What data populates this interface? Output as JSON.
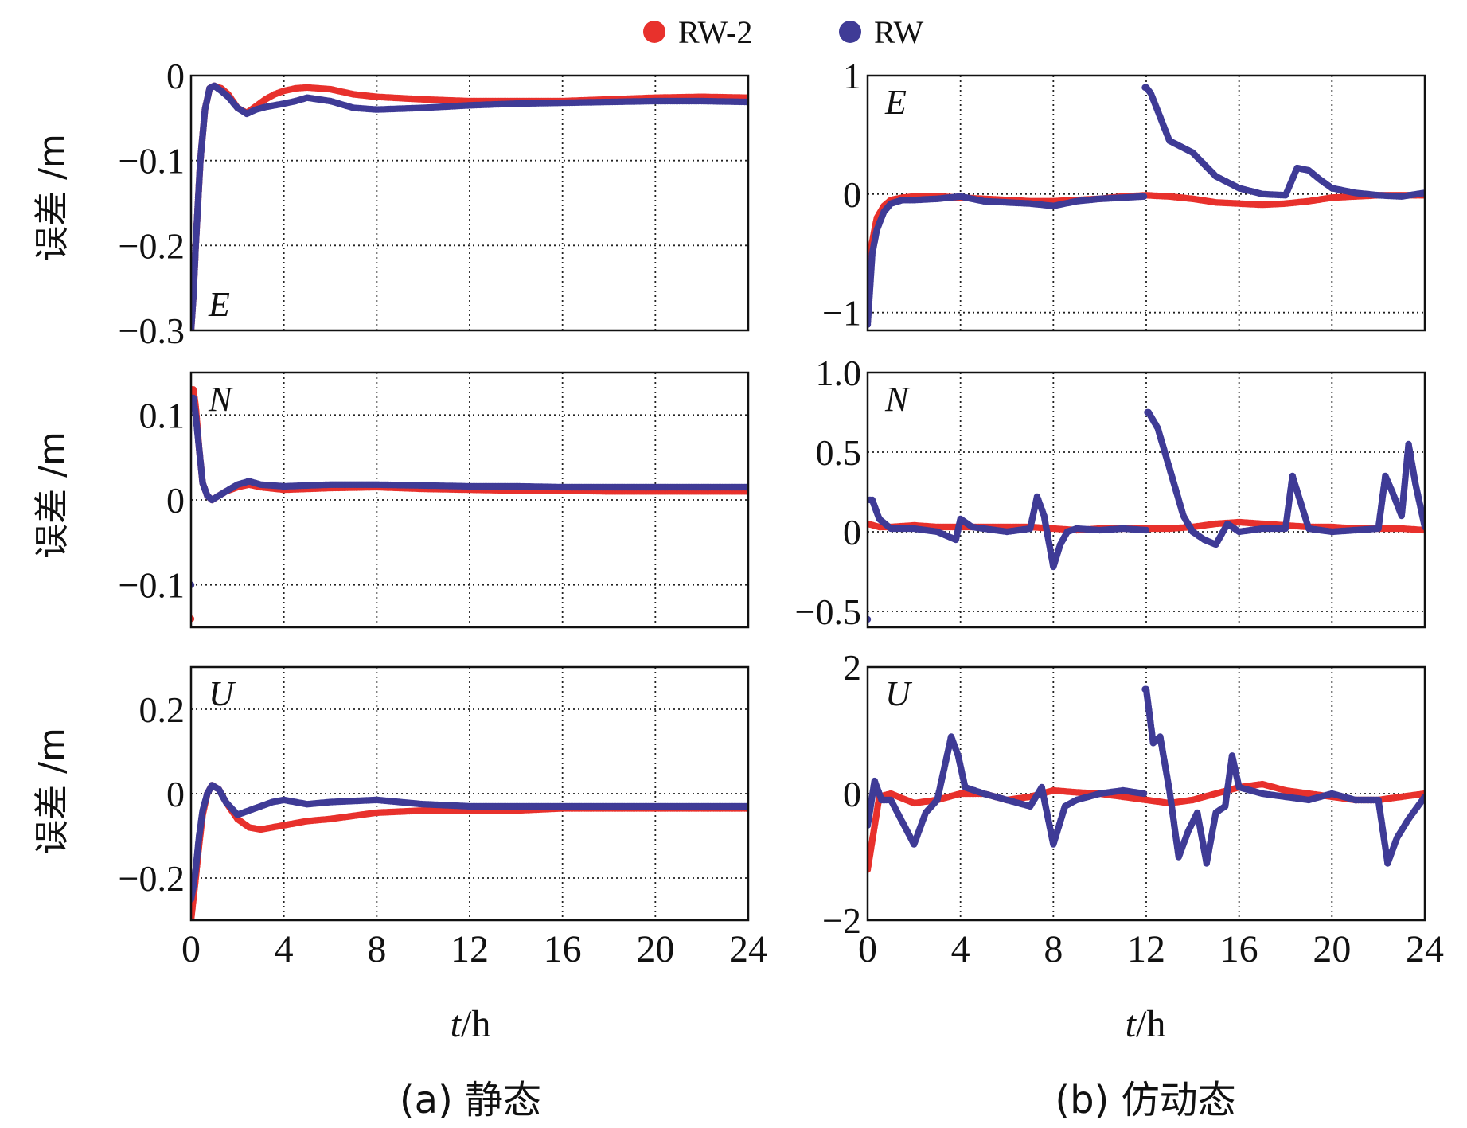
{
  "legend": {
    "position": "top-center",
    "items": [
      {
        "label": "RW-2",
        "color": "#e8312c"
      },
      {
        "label": "RW",
        "color": "#3f3b96"
      }
    ]
  },
  "captions": {
    "left": "(a) 静态",
    "right": "(b) 仿动态"
  },
  "axis_labels": {
    "ylabel": "误差 /m",
    "xlabel_italic": "t",
    "xlabel_unit": "/h"
  },
  "chart_data": [
    {
      "type": "scatter",
      "panel": "a",
      "component": "E",
      "xlim": [
        0,
        24
      ],
      "ylim": [
        -0.3,
        0
      ],
      "xticks": [
        0,
        4,
        8,
        12,
        16,
        20,
        24
      ],
      "yticks": [
        {
          "v": 0,
          "label": "0"
        },
        {
          "v": -0.1,
          "label": "−0.1"
        },
        {
          "v": -0.2,
          "label": "−0.2"
        },
        {
          "v": -0.3,
          "label": "−0.3"
        }
      ],
      "show_xticklabels": false,
      "grid": true,
      "series": [
        {
          "name": "RW-2",
          "color": "#e8312c",
          "x": [
            0,
            0.1,
            0.2,
            0.3,
            0.4,
            0.5,
            0.6,
            0.8,
            1.0,
            1.3,
            1.6,
            2.0,
            2.4,
            2.8,
            3.2,
            3.6,
            4.0,
            4.5,
            5,
            6,
            7,
            8,
            10,
            12,
            14,
            16,
            18,
            20,
            22,
            24
          ],
          "y": [
            -0.3,
            -0.26,
            -0.2,
            -0.15,
            -0.1,
            -0.07,
            -0.04,
            -0.015,
            -0.012,
            -0.015,
            -0.022,
            -0.038,
            -0.044,
            -0.036,
            -0.028,
            -0.022,
            -0.018,
            -0.015,
            -0.014,
            -0.016,
            -0.022,
            -0.025,
            -0.028,
            -0.03,
            -0.03,
            -0.03,
            -0.028,
            -0.026,
            -0.025,
            -0.026
          ]
        },
        {
          "name": "RW",
          "color": "#3f3b96",
          "x": [
            0,
            0.1,
            0.2,
            0.3,
            0.4,
            0.5,
            0.6,
            0.8,
            1.0,
            1.3,
            1.6,
            2.0,
            2.4,
            2.8,
            3.2,
            3.6,
            4.0,
            4.5,
            5,
            6,
            7,
            8,
            10,
            12,
            14,
            16,
            18,
            20,
            22,
            24
          ],
          "y": [
            -0.3,
            -0.26,
            -0.2,
            -0.15,
            -0.1,
            -0.07,
            -0.04,
            -0.015,
            -0.012,
            -0.018,
            -0.025,
            -0.038,
            -0.045,
            -0.04,
            -0.037,
            -0.035,
            -0.033,
            -0.03,
            -0.026,
            -0.03,
            -0.038,
            -0.04,
            -0.038,
            -0.035,
            -0.033,
            -0.032,
            -0.031,
            -0.03,
            -0.03,
            -0.031
          ]
        }
      ]
    },
    {
      "type": "scatter",
      "panel": "b",
      "component": "E",
      "xlim": [
        0,
        24
      ],
      "ylim": [
        -1.15,
        1.0
      ],
      "xticks": [
        0,
        4,
        8,
        12,
        16,
        20,
        24
      ],
      "yticks": [
        {
          "v": 1,
          "label": "1"
        },
        {
          "v": 0,
          "label": "0"
        },
        {
          "v": -1,
          "label": "−1"
        }
      ],
      "show_xticklabels": false,
      "grid": true,
      "series": [
        {
          "name": "RW-2",
          "color": "#e8312c",
          "x": [
            0,
            0.2,
            0.4,
            0.7,
            1.0,
            1.5,
            2,
            3,
            4,
            5,
            6,
            7,
            8,
            9,
            10,
            11,
            12,
            13,
            14,
            15,
            16,
            17,
            18,
            19,
            20,
            21,
            22,
            23,
            24
          ],
          "y": [
            -0.6,
            -0.4,
            -0.2,
            -0.1,
            -0.05,
            -0.03,
            -0.02,
            -0.02,
            -0.03,
            -0.04,
            -0.05,
            -0.06,
            -0.06,
            -0.05,
            -0.04,
            -0.02,
            -0.01,
            -0.02,
            -0.04,
            -0.07,
            -0.08,
            -0.09,
            -0.08,
            -0.06,
            -0.03,
            -0.02,
            -0.01,
            -0.01,
            -0.01
          ]
        },
        {
          "name": "RW",
          "color": "#3f3b96",
          "x": [
            0,
            0.2,
            0.4,
            0.7,
            1.0,
            1.5,
            2,
            3,
            4,
            5,
            6,
            7,
            8,
            9,
            10,
            11,
            11.9,
            12.0,
            12.2,
            12.5,
            13,
            13.5,
            14,
            14.5,
            15,
            15.5,
            16,
            17,
            18,
            18.5,
            19,
            19.5,
            20,
            21,
            22,
            23,
            24
          ],
          "y": [
            -1.1,
            -0.5,
            -0.3,
            -0.15,
            -0.08,
            -0.05,
            -0.05,
            -0.04,
            -0.02,
            -0.06,
            -0.07,
            -0.08,
            -0.1,
            -0.06,
            -0.04,
            -0.03,
            -0.02,
            0.9,
            0.85,
            0.7,
            0.45,
            0.4,
            0.35,
            0.25,
            0.15,
            0.1,
            0.05,
            0.0,
            -0.01,
            0.22,
            0.2,
            0.12,
            0.05,
            0.01,
            -0.01,
            -0.02,
            0.01
          ]
        }
      ]
    },
    {
      "type": "scatter",
      "panel": "a",
      "component": "N",
      "xlim": [
        0,
        24
      ],
      "ylim": [
        -0.15,
        0.15
      ],
      "xticks": [
        0,
        4,
        8,
        12,
        16,
        20,
        24
      ],
      "yticks": [
        {
          "v": 0.1,
          "label": "0.1"
        },
        {
          "v": 0,
          "label": "0"
        },
        {
          "v": -0.1,
          "label": "−0.1"
        }
      ],
      "show_xticklabels": false,
      "grid": true,
      "series": [
        {
          "name": "RW-2",
          "color": "#e8312c",
          "x": [
            0,
            0.1,
            0.2,
            0.35,
            0.5,
            0.7,
            0.9,
            1.2,
            1.5,
            2,
            2.5,
            3,
            4,
            5,
            6,
            8,
            10,
            12,
            14,
            16,
            18,
            20,
            22,
            24
          ],
          "y": [
            -0.14,
            0.13,
            0.11,
            0.06,
            0.02,
            0.005,
            0.0,
            0.005,
            0.01,
            0.015,
            0.018,
            0.015,
            0.012,
            0.013,
            0.014,
            0.015,
            0.013,
            0.012,
            0.011,
            0.011,
            0.01,
            0.01,
            0.01,
            0.01
          ]
        },
        {
          "name": "RW",
          "color": "#3f3b96",
          "x": [
            0,
            0.1,
            0.2,
            0.35,
            0.5,
            0.7,
            0.9,
            1.2,
            1.5,
            2,
            2.5,
            3,
            4,
            5,
            6,
            8,
            10,
            12,
            14,
            16,
            18,
            20,
            22,
            24
          ],
          "y": [
            -0.1,
            0.12,
            0.1,
            0.06,
            0.02,
            0.005,
            0.0,
            0.005,
            0.01,
            0.018,
            0.022,
            0.018,
            0.016,
            0.017,
            0.018,
            0.018,
            0.017,
            0.016,
            0.016,
            0.015,
            0.015,
            0.015,
            0.015,
            0.015
          ]
        }
      ]
    },
    {
      "type": "scatter",
      "panel": "b",
      "component": "N",
      "xlim": [
        0,
        24
      ],
      "ylim": [
        -0.6,
        1.0
      ],
      "xticks": [
        0,
        4,
        8,
        12,
        16,
        20,
        24
      ],
      "yticks": [
        {
          "v": 1.0,
          "label": "1.0"
        },
        {
          "v": 0.5,
          "label": "0.5"
        },
        {
          "v": 0,
          "label": "0"
        },
        {
          "v": -0.5,
          "label": "−0.5"
        }
      ],
      "show_xticklabels": false,
      "grid": true,
      "series": [
        {
          "name": "RW-2",
          "color": "#e8312c",
          "x": [
            0,
            0.5,
            1,
            2,
            3,
            4,
            5,
            6,
            7,
            8,
            9,
            10,
            11,
            12,
            13,
            14,
            15,
            16,
            17,
            18,
            19,
            20,
            21,
            22,
            23,
            24
          ],
          "y": [
            0.05,
            0.03,
            0.03,
            0.04,
            0.03,
            0.03,
            0.03,
            0.03,
            0.03,
            0.02,
            0.01,
            0.02,
            0.02,
            0.02,
            0.02,
            0.03,
            0.05,
            0.06,
            0.05,
            0.04,
            0.03,
            0.03,
            0.02,
            0.02,
            0.02,
            0.01
          ]
        },
        {
          "name": "RW",
          "color": "#3f3b96",
          "x": [
            0,
            0.2,
            0.5,
            1,
            2,
            3,
            3.8,
            4,
            4.5,
            5,
            6,
            7,
            7.3,
            7.6,
            8,
            8.3,
            8.6,
            9,
            10,
            11,
            12,
            12.1,
            12.5,
            13,
            13.3,
            13.6,
            14,
            14.5,
            15,
            15.5,
            16,
            17,
            18,
            18.3,
            19,
            20,
            21,
            22,
            22.3,
            22.6,
            23,
            23.3,
            23.6,
            24
          ],
          "y": [
            -0.55,
            0.2,
            0.08,
            0.02,
            0.02,
            0.0,
            -0.05,
            0.08,
            0.03,
            0.02,
            0.0,
            0.02,
            0.22,
            0.1,
            -0.22,
            -0.08,
            0.0,
            0.02,
            0.01,
            0.02,
            0.01,
            0.75,
            0.65,
            0.4,
            0.25,
            0.1,
            0.0,
            -0.05,
            -0.08,
            0.05,
            0.0,
            0.02,
            0.02,
            0.35,
            0.02,
            0.0,
            0.01,
            0.02,
            0.35,
            0.25,
            0.1,
            0.55,
            0.3,
            0.03
          ]
        }
      ]
    },
    {
      "type": "scatter",
      "panel": "a",
      "component": "U",
      "xlim": [
        0,
        24
      ],
      "ylim": [
        -0.3,
        0.3
      ],
      "xticks": [
        0,
        4,
        8,
        12,
        16,
        20,
        24
      ],
      "yticks": [
        {
          "v": 0.2,
          "label": "0.2"
        },
        {
          "v": 0,
          "label": "0"
        },
        {
          "v": -0.2,
          "label": "−0.2"
        }
      ],
      "show_xticklabels": true,
      "grid": true,
      "series": [
        {
          "name": "RW-2",
          "color": "#e8312c",
          "x": [
            0,
            0.1,
            0.2,
            0.35,
            0.5,
            0.7,
            0.9,
            1.2,
            1.5,
            2,
            2.5,
            3,
            3.5,
            4,
            5,
            6,
            8,
            10,
            12,
            14,
            16,
            18,
            20,
            22,
            24
          ],
          "y": [
            -0.3,
            -0.25,
            -0.2,
            -0.12,
            -0.05,
            0.0,
            0.02,
            0.01,
            -0.02,
            -0.06,
            -0.08,
            -0.085,
            -0.08,
            -0.075,
            -0.065,
            -0.06,
            -0.045,
            -0.04,
            -0.04,
            -0.04,
            -0.035,
            -0.035,
            -0.035,
            -0.035,
            -0.035
          ]
        },
        {
          "name": "RW",
          "color": "#3f3b96",
          "x": [
            0,
            0.1,
            0.2,
            0.35,
            0.5,
            0.7,
            0.9,
            1.2,
            1.5,
            2,
            2.5,
            3,
            3.5,
            4,
            5,
            6,
            8,
            10,
            12,
            14,
            16,
            18,
            20,
            22,
            24
          ],
          "y": [
            -0.25,
            -0.22,
            -0.18,
            -0.1,
            -0.04,
            0.0,
            0.02,
            0.01,
            -0.02,
            -0.05,
            -0.04,
            -0.03,
            -0.02,
            -0.015,
            -0.025,
            -0.02,
            -0.015,
            -0.025,
            -0.03,
            -0.03,
            -0.03,
            -0.03,
            -0.03,
            -0.03,
            -0.03
          ]
        }
      ]
    },
    {
      "type": "scatter",
      "panel": "b",
      "component": "U",
      "xlim": [
        0,
        24
      ],
      "ylim": [
        -2.0,
        2.0
      ],
      "xticks": [
        0,
        4,
        8,
        12,
        16,
        20,
        24
      ],
      "yticks": [
        {
          "v": 2,
          "label": "2"
        },
        {
          "v": 0,
          "label": "0"
        },
        {
          "v": -2,
          "label": "−2"
        }
      ],
      "show_xticklabels": true,
      "grid": true,
      "series": [
        {
          "name": "RW-2",
          "color": "#e8312c",
          "x": [
            0,
            0.5,
            1,
            2,
            3,
            4,
            5,
            6,
            7,
            8,
            9,
            10,
            11,
            12,
            13,
            14,
            15,
            16,
            17,
            18,
            19,
            20,
            21,
            22,
            23,
            24
          ],
          "y": [
            -1.2,
            -0.05,
            0.0,
            -0.15,
            -0.1,
            0.0,
            0.0,
            -0.1,
            -0.05,
            0.05,
            0.02,
            0.0,
            -0.05,
            -0.1,
            -0.15,
            -0.1,
            0.0,
            0.1,
            0.15,
            0.05,
            0.0,
            -0.05,
            -0.1,
            -0.1,
            -0.05,
            0.0
          ]
        },
        {
          "name": "RW",
          "color": "#3f3b96",
          "x": [
            0,
            0.3,
            0.6,
            1,
            2,
            2.5,
            3,
            3.6,
            3.9,
            4.2,
            5,
            6,
            7,
            7.5,
            8,
            8.5,
            9,
            10,
            11,
            11.9,
            12.0,
            12.3,
            12.6,
            13,
            13.4,
            13.8,
            14.2,
            14.6,
            15,
            15.4,
            15.7,
            16,
            17,
            18,
            19,
            20,
            21,
            22,
            22.4,
            22.8,
            23.3,
            24
          ],
          "y": [
            -0.5,
            0.2,
            -0.1,
            -0.1,
            -0.8,
            -0.3,
            -0.1,
            0.9,
            0.6,
            0.1,
            0.0,
            -0.1,
            -0.2,
            0.1,
            -0.8,
            -0.2,
            -0.1,
            0.0,
            0.05,
            0.0,
            1.65,
            0.8,
            0.9,
            0.05,
            -1.0,
            -0.6,
            -0.3,
            -1.1,
            -0.3,
            -0.2,
            0.6,
            0.1,
            0.0,
            -0.05,
            -0.1,
            0.0,
            -0.1,
            -0.1,
            -1.1,
            -0.7,
            -0.4,
            -0.05
          ]
        }
      ]
    }
  ]
}
